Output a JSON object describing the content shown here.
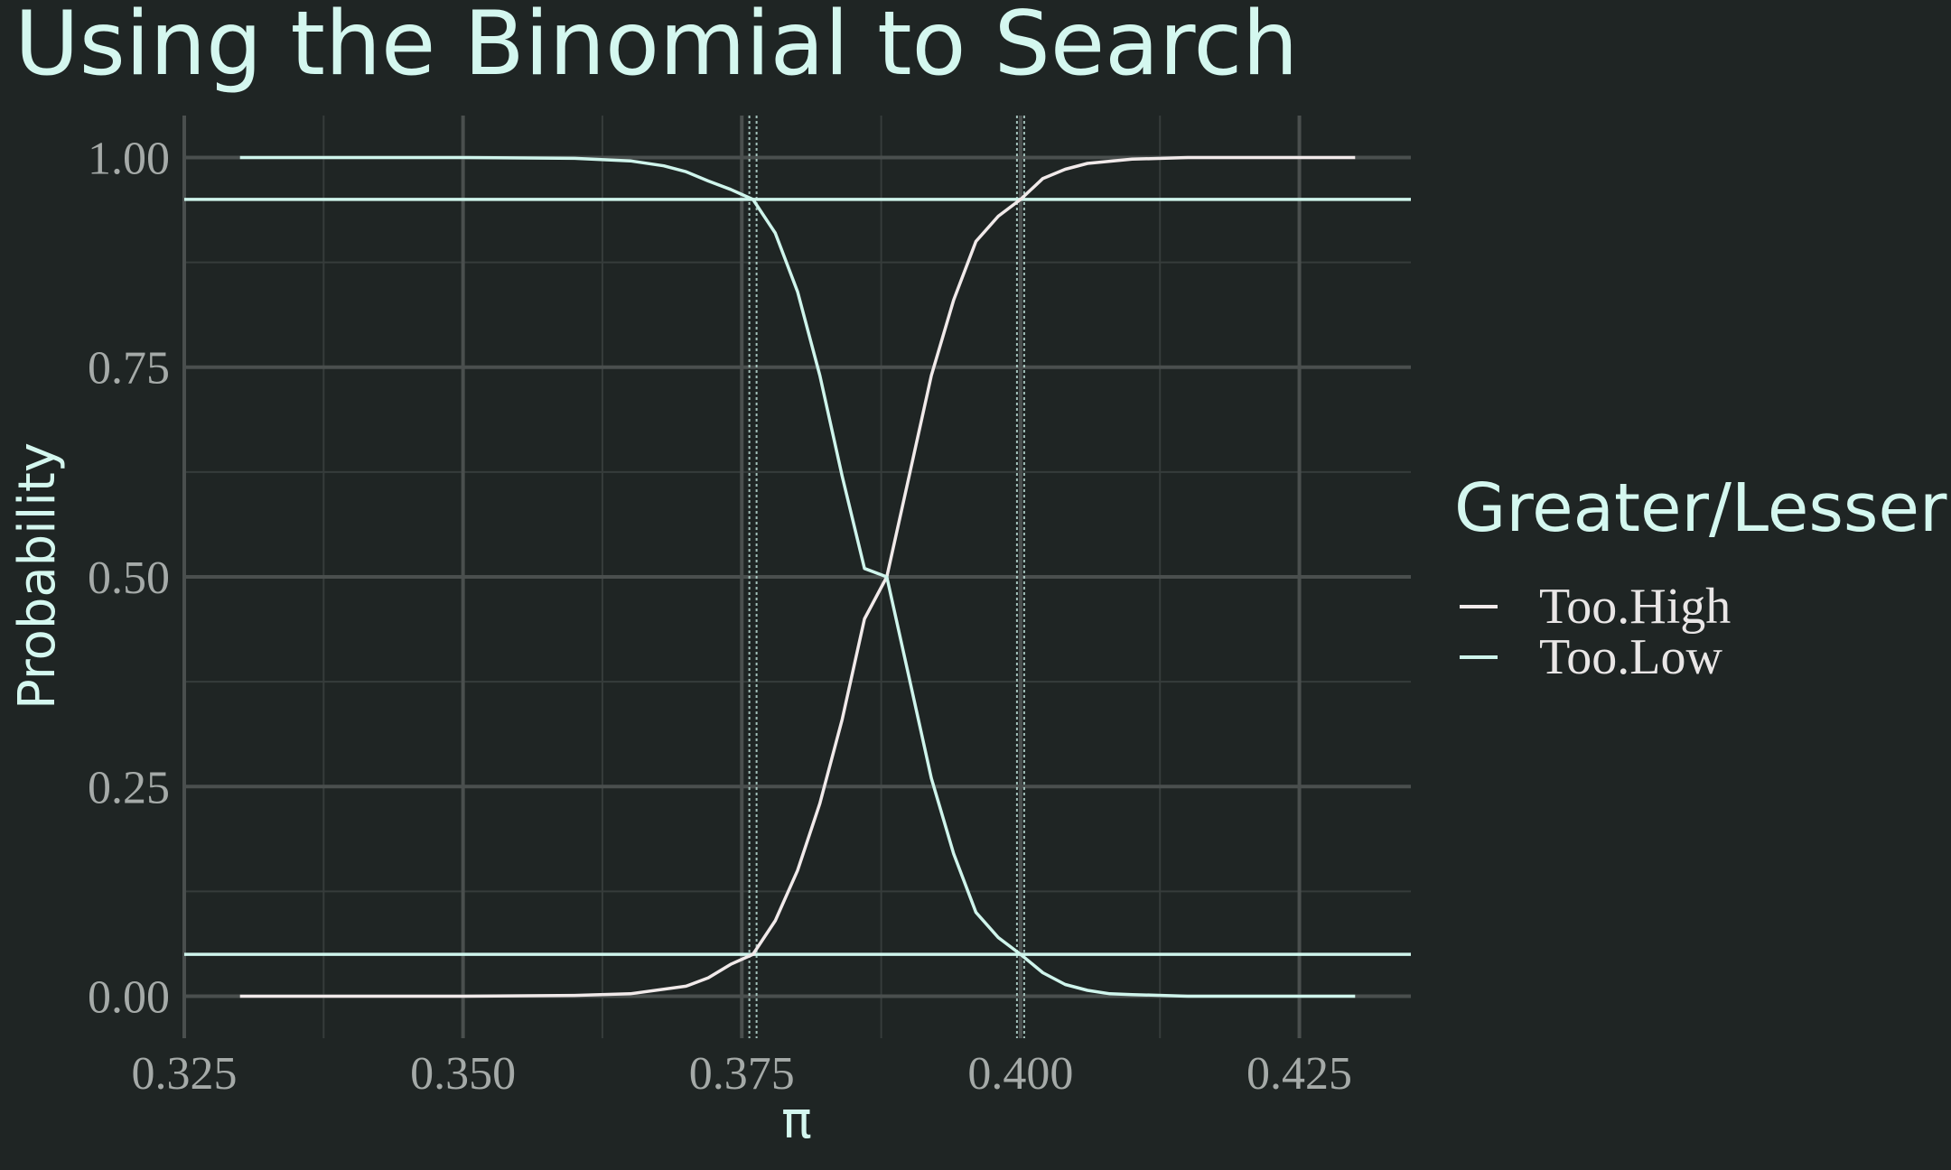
{
  "chart_data": {
    "type": "line",
    "title": "Using the Binomial to Search",
    "xlabel": "π",
    "ylabel": "Probability",
    "xlim": [
      0.325,
      0.435
    ],
    "ylim": [
      -0.05,
      1.05
    ],
    "x_ticks": [
      0.325,
      0.35,
      0.375,
      0.4,
      0.425
    ],
    "x_tick_labels": [
      "0.325",
      "0.350",
      "0.375",
      "0.400",
      "0.425"
    ],
    "y_ticks": [
      0.0,
      0.25,
      0.5,
      0.75,
      1.0
    ],
    "y_tick_labels": [
      "0.00",
      "0.25",
      "0.50",
      "0.75",
      "1.00"
    ],
    "grid": true,
    "legend": {
      "title": "Greater/Lesser",
      "placement": "right",
      "entries": [
        "Too.High",
        "Too.Low"
      ]
    },
    "series": [
      {
        "name": "Too.High",
        "color": "#f1eaea",
        "x": [
          0.33,
          0.34,
          0.35,
          0.36,
          0.365,
          0.37,
          0.372,
          0.374,
          0.376,
          0.378,
          0.38,
          0.382,
          0.384,
          0.386,
          0.388,
          0.39,
          0.392,
          0.394,
          0.396,
          0.398,
          0.4,
          0.402,
          0.404,
          0.406,
          0.41,
          0.415,
          0.42,
          0.425,
          0.43
        ],
        "values": [
          0.0,
          0.0,
          0.0,
          0.001,
          0.003,
          0.012,
          0.022,
          0.038,
          0.05,
          0.09,
          0.15,
          0.23,
          0.33,
          0.45,
          0.5,
          0.62,
          0.74,
          0.83,
          0.9,
          0.93,
          0.95,
          0.975,
          0.986,
          0.993,
          0.998,
          1.0,
          1.0,
          1.0,
          1.0
        ]
      },
      {
        "name": "Too.Low",
        "color": "#cff5ec",
        "x": [
          0.33,
          0.34,
          0.35,
          0.36,
          0.365,
          0.368,
          0.37,
          0.372,
          0.374,
          0.376,
          0.378,
          0.38,
          0.382,
          0.384,
          0.386,
          0.388,
          0.39,
          0.392,
          0.394,
          0.396,
          0.398,
          0.4,
          0.402,
          0.404,
          0.406,
          0.408,
          0.41,
          0.415,
          0.42,
          0.425,
          0.43
        ],
        "values": [
          1.0,
          1.0,
          1.0,
          0.999,
          0.996,
          0.99,
          0.983,
          0.972,
          0.962,
          0.95,
          0.91,
          0.84,
          0.74,
          0.62,
          0.51,
          0.5,
          0.38,
          0.26,
          0.17,
          0.1,
          0.07,
          0.05,
          0.028,
          0.014,
          0.007,
          0.003,
          0.002,
          0.0,
          0.0,
          0.0,
          0.0
        ]
      }
    ],
    "reference_lines": {
      "horizontal": [
        0.95,
        0.05
      ],
      "vertical": [
        0.376,
        0.4
      ],
      "color": "#cff5ec"
    }
  },
  "colors": {
    "background": "#1f2524",
    "major_grid": "#4a4f4e",
    "minor_grid": "#363c3b",
    "tick_text": "#a5aaa8",
    "title_text": "#d4f7ef",
    "legend_text": "#e9e6e6"
  }
}
